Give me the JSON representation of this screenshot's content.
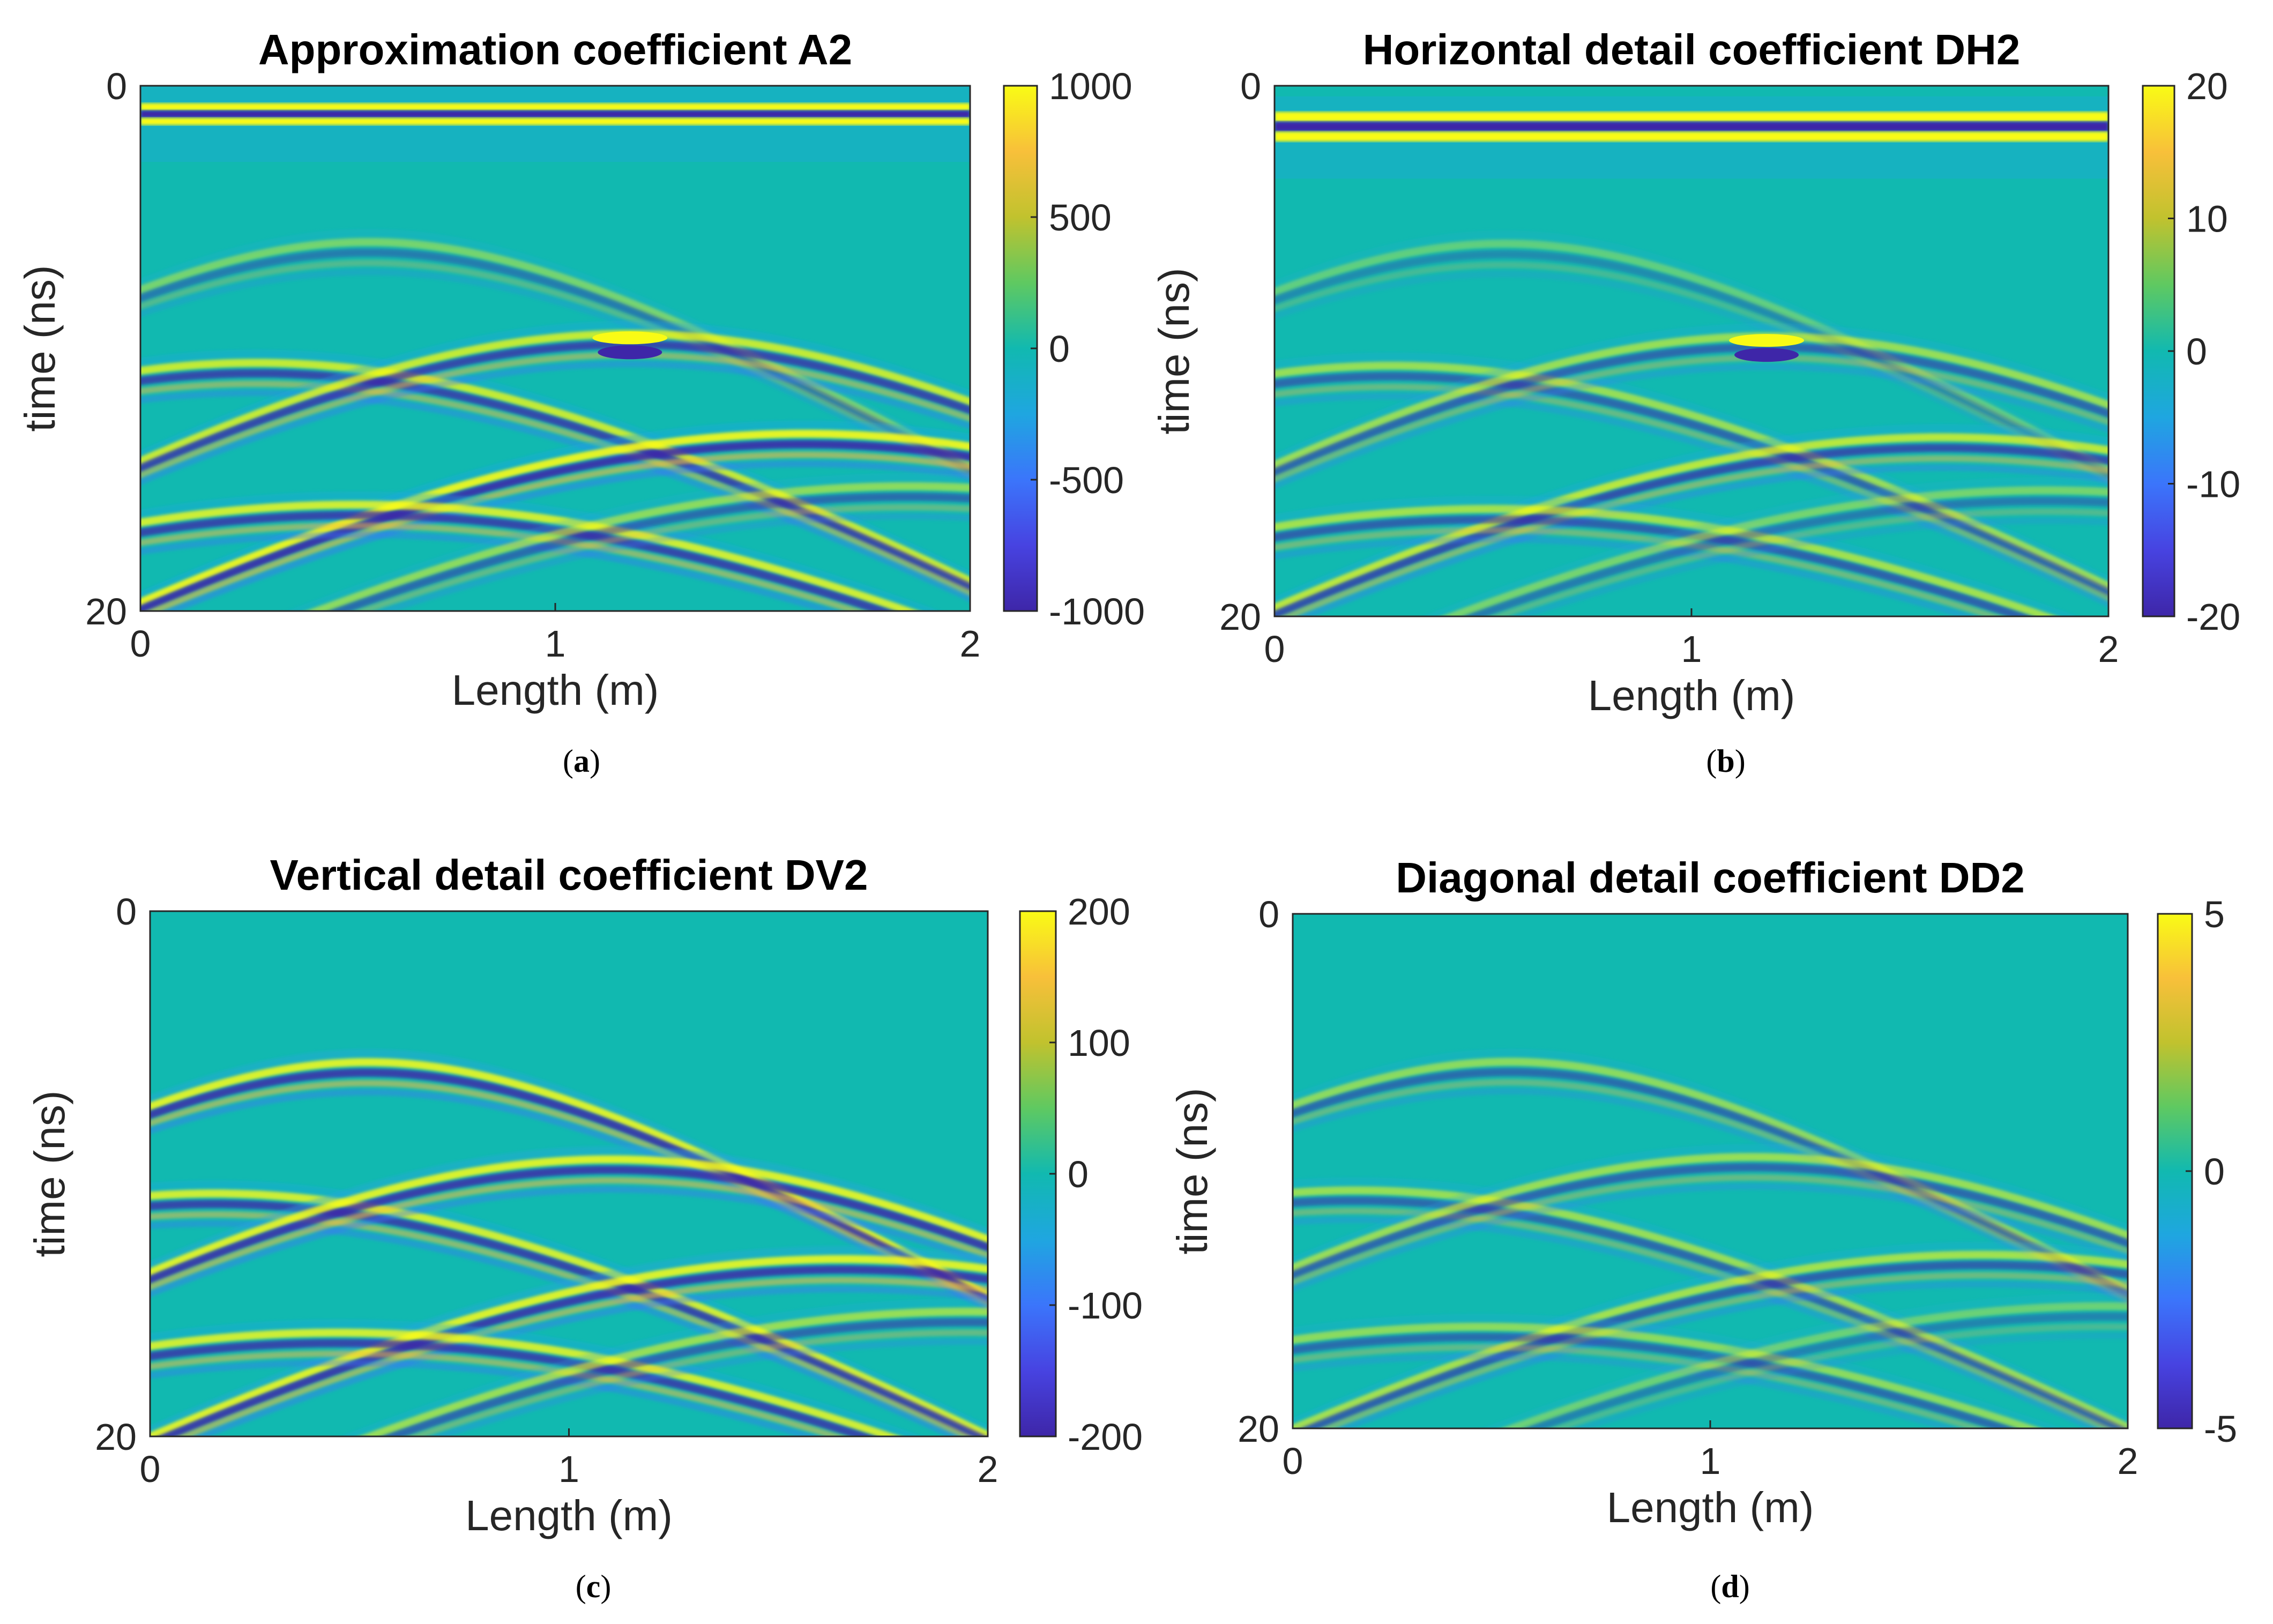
{
  "colors": {
    "background": "#11b9b0",
    "colormap": [
      "#3e26a8",
      "#4743e1",
      "#3b75fb",
      "#1fa6e0",
      "#11b9b0",
      "#5fc961",
      "#c1c22e",
      "#f8c03a",
      "#f9fb15"
    ]
  },
  "chart_data": [
    {
      "type": "heatmap",
      "caption": "a",
      "title": "Approximation coefficient A2",
      "xlabel": "Length (m)",
      "ylabel": "time (ns)",
      "xlim": [
        0,
        2
      ],
      "ylim": [
        0,
        20
      ],
      "y_reversed": true,
      "xticks": [
        "0",
        "1",
        "2"
      ],
      "yticks": [
        "0",
        "20"
      ],
      "colorbar": {
        "range": [
          -1000,
          1000
        ],
        "ticks": [
          "1000",
          "500",
          "0",
          "-500",
          "-1000"
        ]
      },
      "bands": [
        0.9,
        1.5
      ],
      "hyperbolas": [
        {
          "apex_x": 0.55,
          "apex_t": 6.2,
          "strength": 0.45
        },
        {
          "apex_x": 0.28,
          "apex_t": 10.8,
          "strength": 0.8
        },
        {
          "apex_x": 1.18,
          "apex_t": 9.7,
          "strength": 0.8,
          "apex_flash": true
        },
        {
          "apex_x": 1.6,
          "apex_t": 13.5,
          "strength": 0.95
        },
        {
          "apex_x": 0.52,
          "apex_t": 16.2,
          "strength": 0.85
        },
        {
          "apex_x": 1.85,
          "apex_t": 15.5,
          "strength": 0.55
        }
      ]
    },
    {
      "type": "heatmap",
      "caption": "b",
      "title": "Horizontal detail coefficient DH2",
      "xlabel": "Length (m)",
      "ylabel": "time (ns)",
      "xlim": [
        0,
        2
      ],
      "ylim": [
        0,
        20
      ],
      "y_reversed": true,
      "xticks": [
        "0",
        "1",
        "2"
      ],
      "yticks": [
        "0",
        "20"
      ],
      "colorbar": {
        "range": [
          -20,
          20
        ],
        "ticks": [
          "20",
          "10",
          "0",
          "-10",
          "-20"
        ]
      },
      "bands": [
        1.3,
        2.1
      ],
      "hyperbolas": [
        {
          "apex_x": 0.55,
          "apex_t": 6.2,
          "strength": 0.35
        },
        {
          "apex_x": 0.28,
          "apex_t": 10.8,
          "strength": 0.6
        },
        {
          "apex_x": 1.18,
          "apex_t": 9.7,
          "strength": 0.6,
          "apex_flash": true
        },
        {
          "apex_x": 1.6,
          "apex_t": 13.5,
          "strength": 0.75
        },
        {
          "apex_x": 0.52,
          "apex_t": 16.2,
          "strength": 0.65
        },
        {
          "apex_x": 1.85,
          "apex_t": 15.5,
          "strength": 0.45
        }
      ]
    },
    {
      "type": "heatmap",
      "caption": "c",
      "title": "Vertical detail coefficient DV2",
      "xlabel": "Length (m)",
      "ylabel": "time (ns)",
      "xlim": [
        0,
        2
      ],
      "ylim": [
        0,
        20
      ],
      "y_reversed": true,
      "xticks": [
        "0",
        "1",
        "2"
      ],
      "yticks": [
        "0",
        "20"
      ],
      "colorbar": {
        "range": [
          -200,
          200
        ],
        "ticks": [
          "200",
          "100",
          "0",
          "-100",
          "-200"
        ]
      },
      "bands": [],
      "hyperbolas": [
        {
          "apex_x": 0.52,
          "apex_t": 6.0,
          "strength": 0.9
        },
        {
          "apex_x": 0.15,
          "apex_t": 11.0,
          "strength": 0.85
        },
        {
          "apex_x": 1.1,
          "apex_t": 9.7,
          "strength": 0.9
        },
        {
          "apex_x": 1.65,
          "apex_t": 13.5,
          "strength": 0.9
        },
        {
          "apex_x": 0.45,
          "apex_t": 16.3,
          "strength": 0.85
        },
        {
          "apex_x": 1.95,
          "apex_t": 15.5,
          "strength": 0.6
        }
      ]
    },
    {
      "type": "heatmap",
      "caption": "d",
      "title": "Diagonal detail coefficient DD2",
      "xlabel": "Length (m)",
      "ylabel": "time (ns)",
      "xlim": [
        0,
        2
      ],
      "ylim": [
        0,
        20
      ],
      "y_reversed": true,
      "xticks": [
        "0",
        "1",
        "2"
      ],
      "yticks": [
        "0",
        "20"
      ],
      "colorbar": {
        "range": [
          -5,
          5
        ],
        "ticks": [
          "5",
          "0",
          "-5"
        ]
      },
      "bands": [],
      "hyperbolas": [
        {
          "apex_x": 0.52,
          "apex_t": 6.0,
          "strength": 0.55
        },
        {
          "apex_x": 0.15,
          "apex_t": 11.0,
          "strength": 0.6
        },
        {
          "apex_x": 1.1,
          "apex_t": 9.7,
          "strength": 0.6
        },
        {
          "apex_x": 1.65,
          "apex_t": 13.5,
          "strength": 0.65
        },
        {
          "apex_x": 0.45,
          "apex_t": 16.3,
          "strength": 0.55
        },
        {
          "apex_x": 1.95,
          "apex_t": 15.5,
          "strength": 0.4
        }
      ]
    }
  ]
}
